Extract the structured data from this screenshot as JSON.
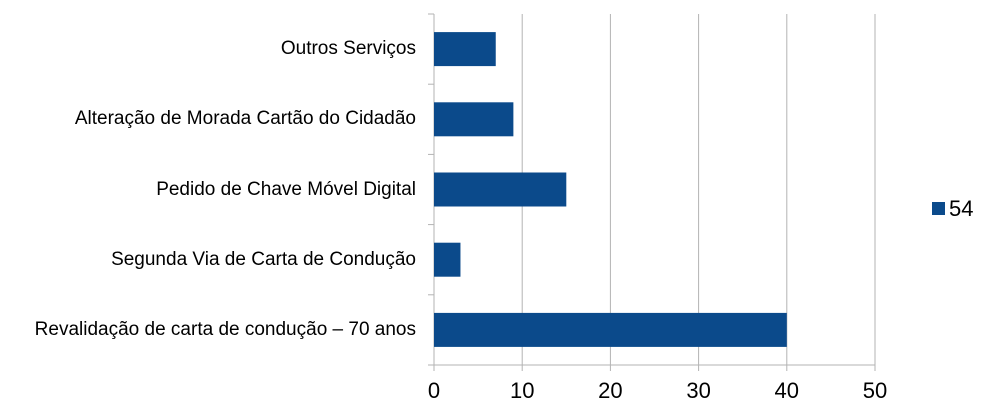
{
  "chart_data": {
    "type": "bar",
    "orientation": "horizontal",
    "categories": [
      "Outros Serviços",
      "Alteração de Morada Cartão do Cidadão",
      "Pedido de Chave Móvel Digital",
      "Segunda Via de Carta de Condução",
      "Revalidação de carta de condução – 70 anos"
    ],
    "series": [
      {
        "name": "54",
        "color": "#0b4a8b",
        "values": [
          7,
          9,
          15,
          3,
          40
        ]
      }
    ],
    "xlim": [
      0,
      50
    ],
    "xticks": [
      0,
      10,
      20,
      30,
      40,
      50
    ],
    "grid": true,
    "legend": "right"
  }
}
